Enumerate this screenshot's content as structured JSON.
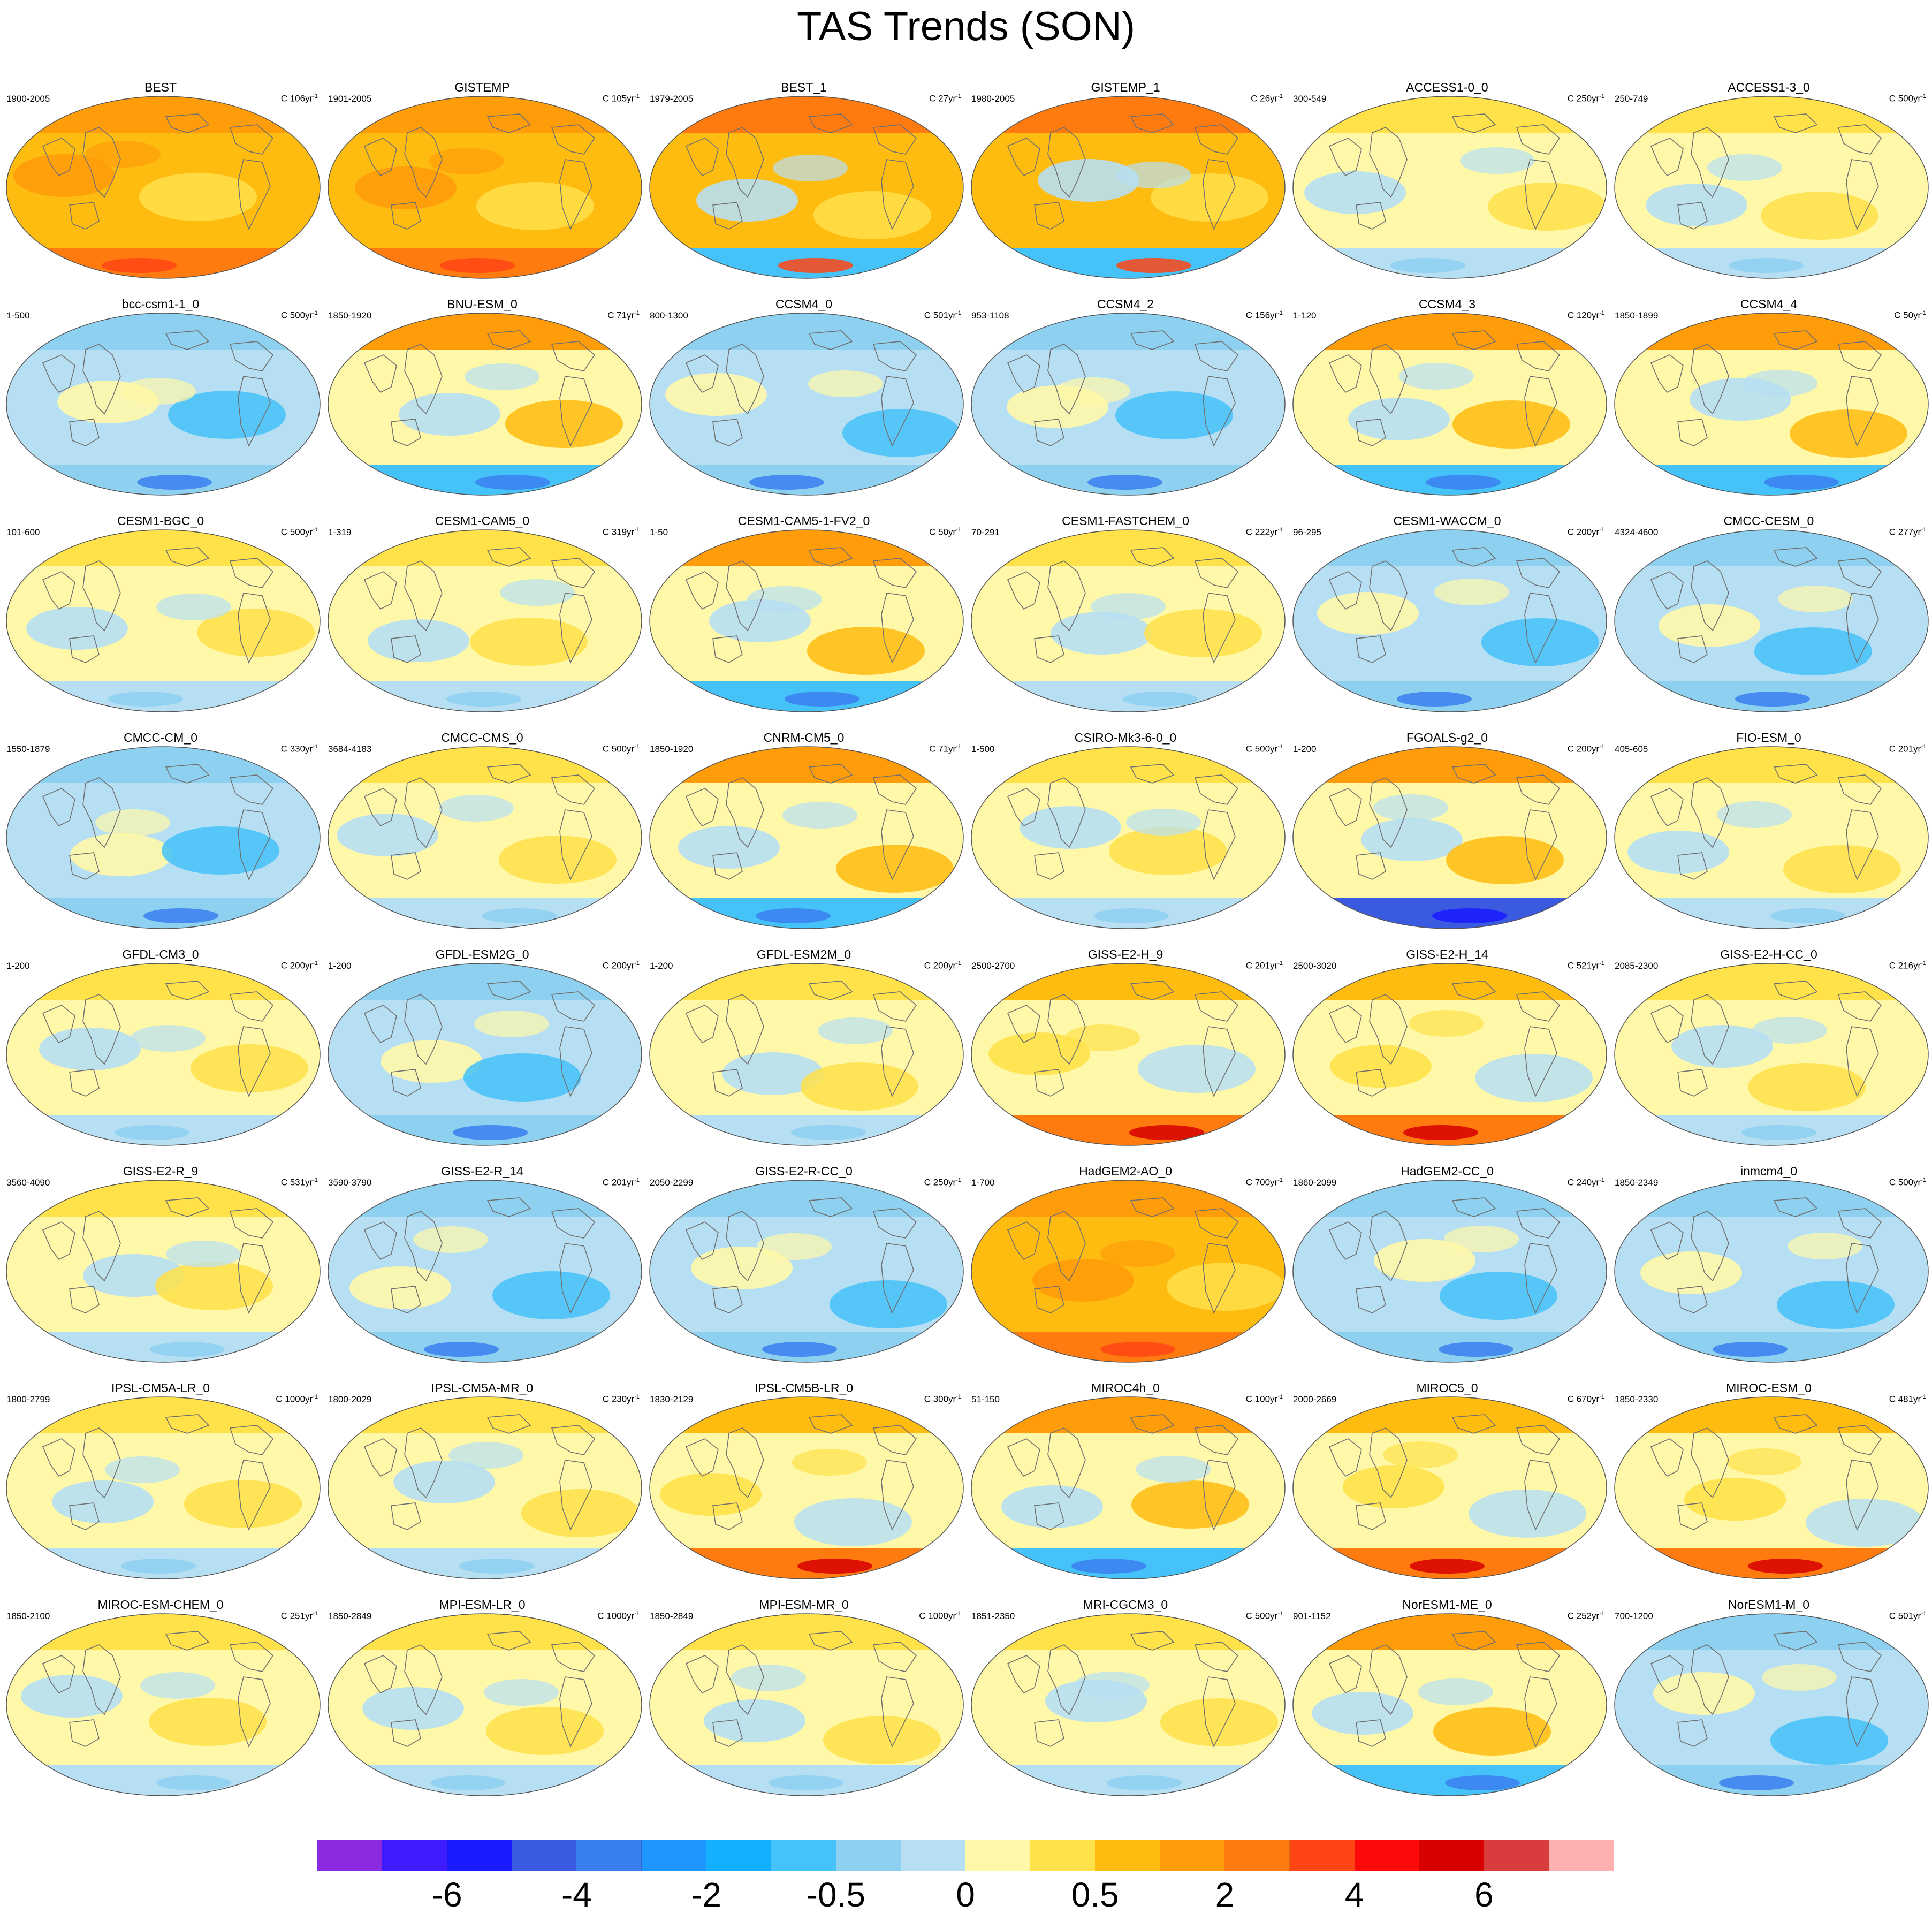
{
  "title": "TAS Trends (SON)",
  "panels": [
    {
      "name": "BEST",
      "years": "1900-2005",
      "c": "C 106yr",
      "pattern": "obs"
    },
    {
      "name": "GISTEMP",
      "years": "1901-2005",
      "c": "C 105yr",
      "pattern": "obs"
    },
    {
      "name": "BEST_1",
      "years": "1979-2005",
      "c": "C 27yr",
      "pattern": "obsrecent"
    },
    {
      "name": "GISTEMP_1",
      "years": "1980-2005",
      "c": "C 26yr",
      "pattern": "obsrecent"
    },
    {
      "name": "ACCESS1-0_0",
      "years": "300-549",
      "c": "C 250yr",
      "pattern": "neutral"
    },
    {
      "name": "ACCESS1-3_0",
      "years": "250-749",
      "c": "C 500yr",
      "pattern": "neutral"
    },
    {
      "name": "bcc-csm1-1_0",
      "years": "1-500",
      "c": "C 500yr",
      "pattern": "cool"
    },
    {
      "name": "BNU-ESM_0",
      "years": "1850-1920",
      "c": "C 71yr",
      "pattern": "mixed"
    },
    {
      "name": "CCSM4_0",
      "years": "800-1300",
      "c": "C 501yr",
      "pattern": "cool"
    },
    {
      "name": "CCSM4_2",
      "years": "953-1108",
      "c": "C 156yr",
      "pattern": "cool"
    },
    {
      "name": "CCSM4_3",
      "years": "1-120",
      "c": "C 120yr",
      "pattern": "mixed"
    },
    {
      "name": "CCSM4_4",
      "years": "1850-1899",
      "c": "C 50yr",
      "pattern": "mixed"
    },
    {
      "name": "CESM1-BGC_0",
      "years": "101-600",
      "c": "C 500yr",
      "pattern": "neutral"
    },
    {
      "name": "CESM1-CAM5_0",
      "years": "1-319",
      "c": "C 319yr",
      "pattern": "neutral"
    },
    {
      "name": "CESM1-CAM5-1-FV2_0",
      "years": "1-50",
      "c": "C 50yr",
      "pattern": "mixed"
    },
    {
      "name": "CESM1-FASTCHEM_0",
      "years": "70-291",
      "c": "C 222yr",
      "pattern": "neutral"
    },
    {
      "name": "CESM1-WACCM_0",
      "years": "96-295",
      "c": "C 200yr",
      "pattern": "cool"
    },
    {
      "name": "CMCC-CESM_0",
      "years": "4324-4600",
      "c": "C 277yr",
      "pattern": "cool"
    },
    {
      "name": "CMCC-CM_0",
      "years": "1550-1879",
      "c": "C 330yr",
      "pattern": "cool"
    },
    {
      "name": "CMCC-CMS_0",
      "years": "3684-4183",
      "c": "C 500yr",
      "pattern": "neutral"
    },
    {
      "name": "CNRM-CM5_0",
      "years": "1850-1920",
      "c": "C 71yr",
      "pattern": "mixed"
    },
    {
      "name": "CSIRO-Mk3-6-0_0",
      "years": "1-500",
      "c": "C 500yr",
      "pattern": "neutral"
    },
    {
      "name": "FGOALS-g2_0",
      "years": "1-200",
      "c": "C 200yr",
      "pattern": "coldsouth"
    },
    {
      "name": "FIO-ESM_0",
      "years": "405-605",
      "c": "C 201yr",
      "pattern": "neutral"
    },
    {
      "name": "GFDL-CM3_0",
      "years": "1-200",
      "c": "C 200yr",
      "pattern": "neutral"
    },
    {
      "name": "GFDL-ESM2G_0",
      "years": "1-200",
      "c": "C 200yr",
      "pattern": "cool"
    },
    {
      "name": "GFDL-ESM2M_0",
      "years": "1-200",
      "c": "C 200yr",
      "pattern": "neutral"
    },
    {
      "name": "GISS-E2-H_9",
      "years": "2500-2700",
      "c": "C 201yr",
      "pattern": "warmsouth"
    },
    {
      "name": "GISS-E2-H_14",
      "years": "2500-3020",
      "c": "C 521yr",
      "pattern": "warmsouth"
    },
    {
      "name": "GISS-E2-H-CC_0",
      "years": "2085-2300",
      "c": "C 216yr",
      "pattern": "neutral"
    },
    {
      "name": "GISS-E2-R_9",
      "years": "3560-4090",
      "c": "C 531yr",
      "pattern": "neutral"
    },
    {
      "name": "GISS-E2-R_14",
      "years": "3590-3790",
      "c": "C 201yr",
      "pattern": "cool"
    },
    {
      "name": "GISS-E2-R-CC_0",
      "years": "2050-2299",
      "c": "C 250yr",
      "pattern": "cool"
    },
    {
      "name": "HadGEM2-AO_0",
      "years": "1-700",
      "c": "C 700yr",
      "pattern": "obs"
    },
    {
      "name": "HadGEM2-CC_0",
      "years": "1860-2099",
      "c": "C 240yr",
      "pattern": "cool"
    },
    {
      "name": "inmcm4_0",
      "years": "1850-2349",
      "c": "C 500yr",
      "pattern": "cool"
    },
    {
      "name": "IPSL-CM5A-LR_0",
      "years": "1800-2799",
      "c": "C 1000yr",
      "pattern": "neutral"
    },
    {
      "name": "IPSL-CM5A-MR_0",
      "years": "1800-2029",
      "c": "C 230yr",
      "pattern": "neutral"
    },
    {
      "name": "IPSL-CM5B-LR_0",
      "years": "1830-2129",
      "c": "C 300yr",
      "pattern": "warmsouth"
    },
    {
      "name": "MIROC4h_0",
      "years": "51-150",
      "c": "C 100yr",
      "pattern": "mixed"
    },
    {
      "name": "MIROC5_0",
      "years": "2000-2669",
      "c": "C 670yr",
      "pattern": "warmsouth"
    },
    {
      "name": "MIROC-ESM_0",
      "years": "1850-2330",
      "c": "C 481yr",
      "pattern": "warmsouth"
    },
    {
      "name": "MIROC-ESM-CHEM_0",
      "years": "1850-2100",
      "c": "C 251yr",
      "pattern": "neutral"
    },
    {
      "name": "MPI-ESM-LR_0",
      "years": "1850-2849",
      "c": "C 1000yr",
      "pattern": "neutral"
    },
    {
      "name": "MPI-ESM-MR_0",
      "years": "1850-2849",
      "c": "C 1000yr",
      "pattern": "neutral"
    },
    {
      "name": "MRI-CGCM3_0",
      "years": "1851-2350",
      "c": "C 500yr",
      "pattern": "neutral"
    },
    {
      "name": "NorESM1-ME_0",
      "years": "901-1152",
      "c": "C 252yr",
      "pattern": "mixed"
    },
    {
      "name": "NorESM1-M_0",
      "years": "700-1200",
      "c": "C 501yr",
      "pattern": "cool"
    }
  ],
  "colorbar": {
    "colors": [
      "#8a2be2",
      "#3f1bff",
      "#1a1aff",
      "#3a5ae0",
      "#3a7ff0",
      "#1e96ff",
      "#12b0ff",
      "#45c2f8",
      "#8ed0f0",
      "#b7dff3",
      "#fff8a8",
      "#ffe14a",
      "#ffbc10",
      "#ff9c0a",
      "#ff7a0f",
      "#ff4514",
      "#ff0a0a",
      "#d80000",
      "#d83c3c",
      "#ffb0b0"
    ],
    "labels": [
      {
        "text": "-6",
        "boundary": 2
      },
      {
        "text": "-4",
        "boundary": 4
      },
      {
        "text": "-2",
        "boundary": 6
      },
      {
        "text": "-0.5",
        "boundary": 8
      },
      {
        "text": "0",
        "boundary": 10
      },
      {
        "text": "0.5",
        "boundary": 12
      },
      {
        "text": "2",
        "boundary": 14
      },
      {
        "text": "4",
        "boundary": 16
      },
      {
        "text": "6",
        "boundary": 18
      }
    ]
  }
}
